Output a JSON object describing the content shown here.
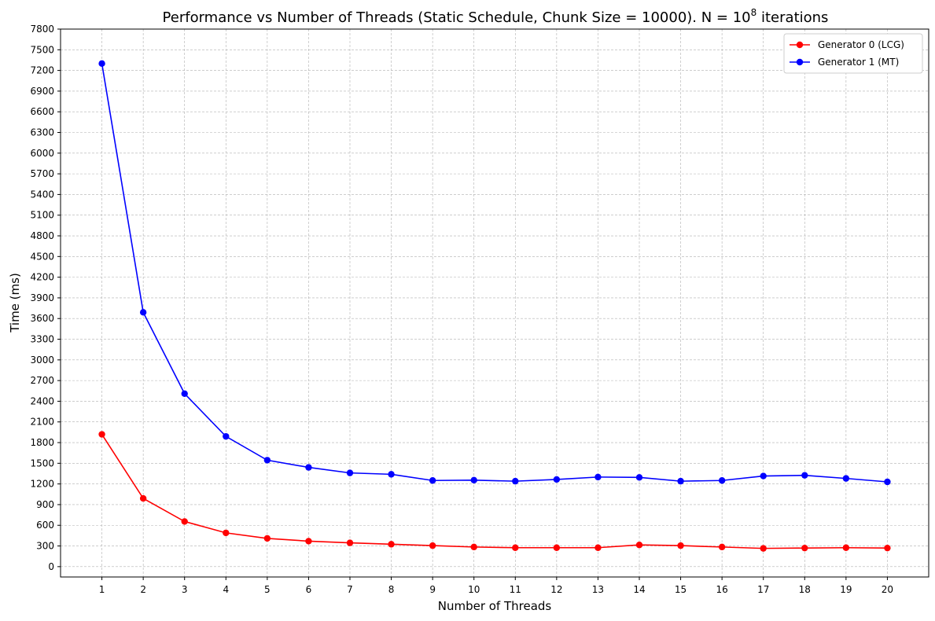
{
  "chart_data": {
    "type": "line",
    "title_main": "Performance vs Number of Threads (Static Schedule, Chunk Size = 10000). N = 10",
    "title_sup": "8",
    "title_tail": " iterations",
    "xlabel": "Number of Threads",
    "ylabel": "Time (ms)",
    "x": [
      1,
      2,
      3,
      4,
      5,
      6,
      7,
      8,
      9,
      10,
      11,
      12,
      13,
      14,
      15,
      16,
      17,
      18,
      19,
      20
    ],
    "xlim": [
      0,
      21
    ],
    "ylim": [
      -150,
      7800
    ],
    "yticks": [
      0,
      300,
      600,
      900,
      1200,
      1500,
      1800,
      2100,
      2400,
      2700,
      3000,
      3300,
      3600,
      3900,
      4200,
      4500,
      4800,
      5100,
      5400,
      5700,
      6000,
      6300,
      6600,
      6900,
      7200,
      7500,
      7800
    ],
    "grid": true,
    "legend_position": "top-right",
    "series": [
      {
        "name": "Generator 0 (LCG)",
        "color": "#ff0000",
        "values": [
          1920,
          990,
          655,
          490,
          410,
          370,
          345,
          325,
          305,
          285,
          275,
          275,
          275,
          315,
          305,
          285,
          265,
          270,
          275,
          270
        ]
      },
      {
        "name": "Generator 1 (MT)",
        "color": "#0000ff",
        "values": [
          7300,
          3690,
          2510,
          1890,
          1545,
          1440,
          1360,
          1340,
          1250,
          1255,
          1240,
          1265,
          1300,
          1295,
          1240,
          1250,
          1315,
          1325,
          1280,
          1230
        ]
      }
    ]
  }
}
